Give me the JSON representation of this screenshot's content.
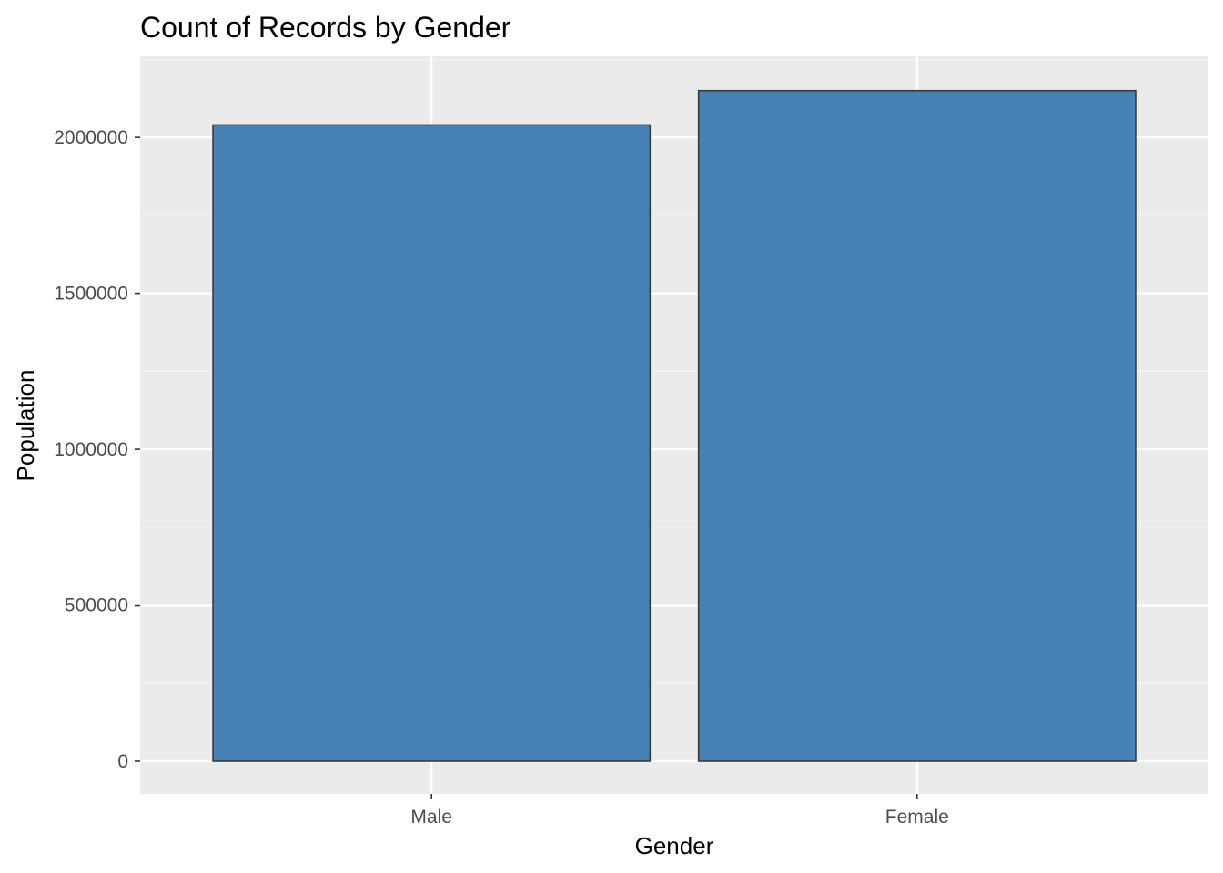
{
  "chart_data": {
    "type": "bar",
    "title": "Count of Records by Gender",
    "xlabel": "Gender",
    "ylabel": "Population",
    "categories": [
      "Male",
      "Female"
    ],
    "values": [
      2040000,
      2150000
    ],
    "ylim": [
      -105000,
      2260000
    ],
    "yticks": [
      0,
      500000,
      1000000,
      1500000,
      2000000
    ],
    "ytick_labels": [
      "0",
      "500000",
      "1000000",
      "1500000",
      "2000000"
    ],
    "grid": true,
    "legend": "none",
    "colors": {
      "bar_fill": "#4682b4",
      "bar_stroke": "#3a3a3a",
      "panel_background": "#ebebeb",
      "grid_major": "#ffffff",
      "grid_minor": "#f5f5f5",
      "tick_mark": "#333333"
    }
  }
}
